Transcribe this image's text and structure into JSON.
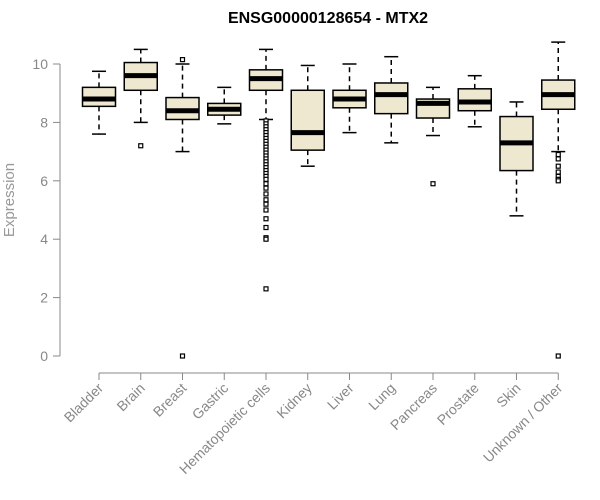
{
  "chart_data": {
    "type": "box",
    "title": "ENSG00000128654 - MTX2",
    "ylabel": "Expression",
    "xlabel": "",
    "ylim": [
      0,
      10.5
    ],
    "yticks": [
      0,
      2,
      4,
      6,
      8,
      10
    ],
    "grid": false,
    "box_fill": "#efe8d1",
    "outline_color": "#000000",
    "axis_color": "#888888",
    "categories": [
      "Bladder",
      "Brain",
      "Breast",
      "Gastric",
      "Hematopoietic cells",
      "Kidney",
      "Liver",
      "Lung",
      "Pancreas",
      "Prostate",
      "Skin",
      "Unknown / Other"
    ],
    "boxes": [
      {
        "category": "Bladder",
        "whisker_low": 7.6,
        "q1": 8.55,
        "median": 8.8,
        "q3": 9.2,
        "whisker_high": 9.75,
        "outliers": []
      },
      {
        "category": "Brain",
        "whisker_low": 8.0,
        "q1": 9.1,
        "median": 9.6,
        "q3": 10.05,
        "whisker_high": 10.5,
        "outliers": [
          7.2
        ]
      },
      {
        "category": "Breast",
        "whisker_low": 7.0,
        "q1": 8.1,
        "median": 8.4,
        "q3": 8.85,
        "whisker_high": 10.0,
        "outliers": [
          10.15,
          0.0
        ]
      },
      {
        "category": "Gastric",
        "whisker_low": 7.95,
        "q1": 8.25,
        "median": 8.45,
        "q3": 8.65,
        "whisker_high": 9.2,
        "outliers": []
      },
      {
        "category": "Hematopoietic cells",
        "whisker_low": 8.1,
        "q1": 9.1,
        "median": 9.5,
        "q3": 9.8,
        "whisker_high": 10.5,
        "outliers": [
          8.05,
          7.95,
          7.85,
          7.75,
          7.65,
          7.55,
          7.45,
          7.35,
          7.25,
          7.15,
          7.05,
          6.95,
          6.85,
          6.75,
          6.65,
          6.55,
          6.45,
          6.35,
          6.25,
          6.15,
          6.05,
          5.9,
          5.75,
          5.55,
          5.35,
          5.2,
          5.0,
          4.7,
          4.4,
          4.05,
          4.0,
          2.3
        ]
      },
      {
        "category": "Kidney",
        "whisker_low": 6.5,
        "q1": 7.05,
        "median": 7.65,
        "q3": 9.1,
        "whisker_high": 9.95,
        "outliers": []
      },
      {
        "category": "Liver",
        "whisker_low": 7.65,
        "q1": 8.5,
        "median": 8.8,
        "q3": 9.1,
        "whisker_high": 10.0,
        "outliers": []
      },
      {
        "category": "Lung",
        "whisker_low": 7.3,
        "q1": 8.3,
        "median": 8.95,
        "q3": 9.35,
        "whisker_high": 10.25,
        "outliers": []
      },
      {
        "category": "Pancreas",
        "whisker_low": 7.55,
        "q1": 8.15,
        "median": 8.65,
        "q3": 8.8,
        "whisker_high": 9.2,
        "outliers": [
          5.9
        ]
      },
      {
        "category": "Prostate",
        "whisker_low": 7.85,
        "q1": 8.4,
        "median": 8.7,
        "q3": 9.15,
        "whisker_high": 9.6,
        "outliers": []
      },
      {
        "category": "Skin",
        "whisker_low": 4.8,
        "q1": 6.35,
        "median": 7.3,
        "q3": 8.2,
        "whisker_high": 8.7,
        "outliers": []
      },
      {
        "category": "Unknown / Other",
        "whisker_low": 7.0,
        "q1": 8.45,
        "median": 8.95,
        "q3": 9.45,
        "whisker_high": 10.75,
        "outliers": [
          6.9,
          6.75,
          6.5,
          6.3,
          6.15,
          6.05,
          6.0,
          0.0
        ]
      }
    ]
  }
}
